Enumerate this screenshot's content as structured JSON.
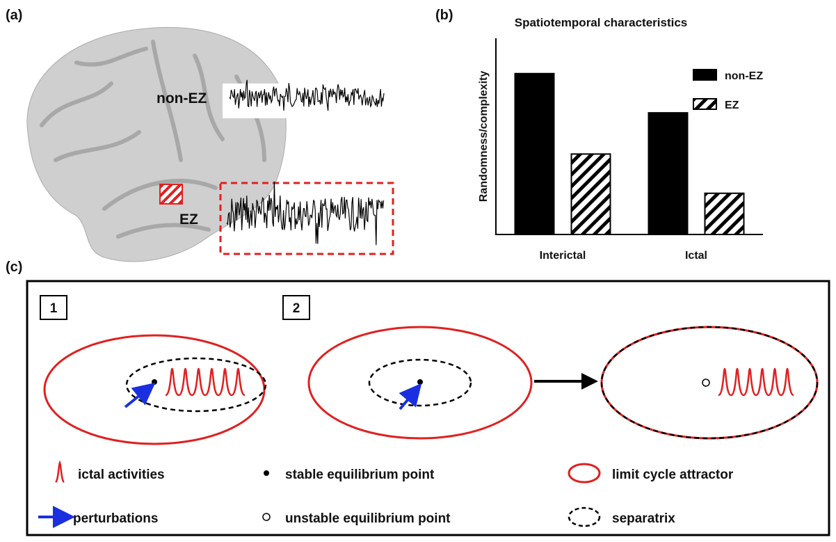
{
  "panels": {
    "a": "(a)",
    "b": "(b)",
    "c": "(c)"
  },
  "panel_a": {
    "upper_label": "non-EZ",
    "lower_label": "EZ"
  },
  "chart_data": {
    "type": "bar",
    "title": "Spatiotemporal characteristics",
    "y_label": "Randomness/complexity",
    "categories": [
      "Interictal",
      "Ictal"
    ],
    "series": [
      {
        "name": "non-EZ",
        "color": "#000000",
        "hatch": false,
        "values": [
          82,
          62
        ]
      },
      {
        "name": "EZ",
        "color": "#000000",
        "hatch": true,
        "values": [
          41,
          21
        ]
      }
    ],
    "ylim": [
      0,
      100
    ],
    "legend": "upper right"
  },
  "panel_c": {
    "box_1": "1",
    "box_2": "2",
    "legend": [
      "ictal activities",
      "stable equilibrium point",
      "limit cycle attractor",
      "perturbations",
      "unstable equilibrium point",
      "separatrix"
    ]
  }
}
